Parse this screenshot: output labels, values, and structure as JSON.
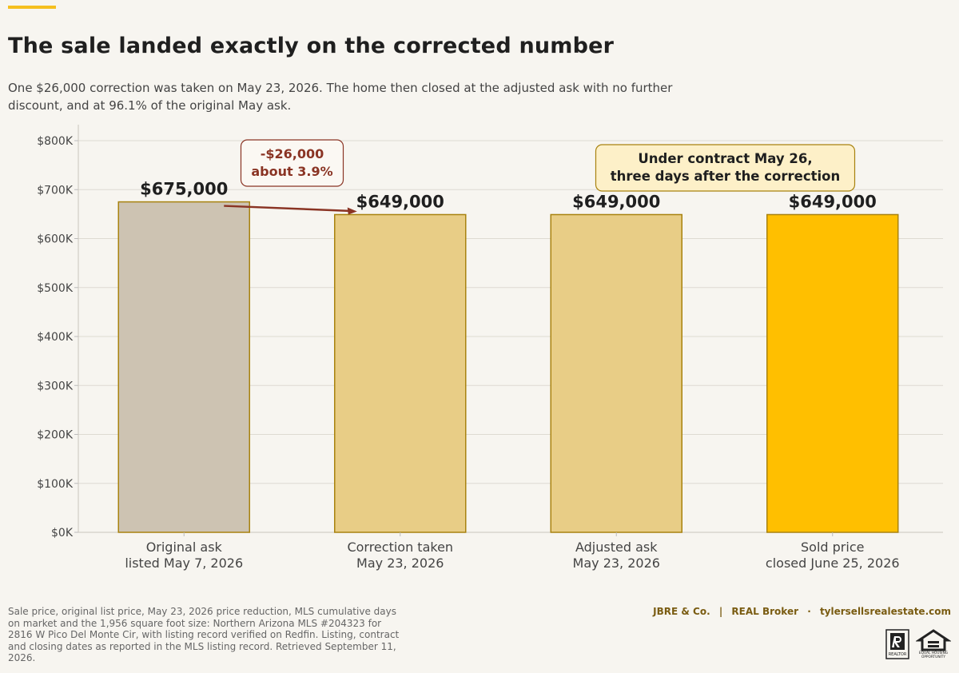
{
  "header": {
    "title": "The sale landed exactly on the corrected number",
    "subtitle": "One $26,000 correction was taken on May 23, 2026. The home then closed at the adjusted ask with no further discount, and at 96.1% of the original May ask."
  },
  "chart_data": {
    "type": "bar",
    "categories": [
      [
        "Original ask",
        "listed May 7, 2026"
      ],
      [
        "Correction taken",
        "May 23, 2026"
      ],
      [
        "Adjusted ask",
        "May 23, 2026"
      ],
      [
        "Sold price",
        "closed June 25, 2026"
      ]
    ],
    "values": [
      675000,
      649000,
      649000,
      649000
    ],
    "value_labels": [
      "$675,000",
      "$649,000",
      "$649,000",
      "$649,000"
    ],
    "bar_colors": [
      "#cdc3b2",
      "#e8cd86",
      "#e8cd86",
      "#ffbf00"
    ],
    "bar_edge_color": "#a8820f",
    "ylim": [
      0,
      800000
    ],
    "yticks": [
      0,
      100000,
      200000,
      300000,
      400000,
      500000,
      600000,
      700000,
      800000
    ],
    "ytick_labels": [
      "$0K",
      "$100K",
      "$200K",
      "$300K",
      "$400K",
      "$500K",
      "$600K",
      "$700K",
      "$800K"
    ],
    "grid": true,
    "annotations": [
      {
        "text": [
          "-$26,000",
          "about 3.9%"
        ],
        "color": "#8a3424",
        "near": "bars 1-2 arrow"
      },
      {
        "text": [
          "Under contract May 26,",
          "three days after the correction"
        ],
        "color": "#1f1f1f",
        "fill": "#fdf0c8",
        "near": "bars 3-4"
      }
    ],
    "arrow_color": "#8a3424"
  },
  "footer": {
    "source": "Sale price, original list price, May 23, 2026 price reduction, MLS cumulative days on market and the 1,956 square foot size: Northern Arizona MLS #204323 for 2816 W Pico Del Monte Cir, with listing record verified on Redfin. Listing, contract and closing dates as reported in the MLS listing record. Retrieved September 11, 2026.",
    "brand_name": "JBRE & Co.",
    "brokerage": "REAL Broker",
    "website": "tylersellsrealestate.com",
    "realtor_logo_text": "REALTOR",
    "eho_logo_text": [
      "EQUAL HOUSING",
      "OPPORTUNITY"
    ]
  },
  "colors": {
    "accent": "#f5bf1f",
    "background": "#f7f5f0",
    "brand_text": "#7a5c12"
  }
}
